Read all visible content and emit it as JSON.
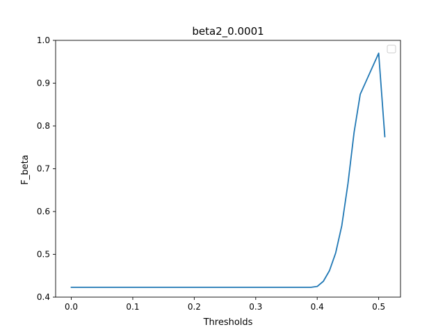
{
  "chart_data": {
    "type": "line",
    "title": "beta2_0.0001",
    "xlabel": "Thresholds",
    "ylabel": "F_beta",
    "xlim": [
      -0.0255,
      0.5355
    ],
    "ylim": [
      0.4,
      1.0
    ],
    "xticks": [
      0.0,
      0.1,
      0.2,
      0.3,
      0.4,
      0.5
    ],
    "xtick_labels": [
      "0.0",
      "0.1",
      "0.2",
      "0.3",
      "0.4",
      "0.5"
    ],
    "yticks": [
      0.4,
      0.5,
      0.6,
      0.7,
      0.8,
      0.9,
      1.0
    ],
    "ytick_labels": [
      "0.4",
      "0.5",
      "0.6",
      "0.7",
      "0.8",
      "0.9",
      "1.0"
    ],
    "grid": false,
    "legend": {
      "placement": "upper right",
      "entries": []
    },
    "series": [
      {
        "color": "#1f77b4",
        "x": [
          0.0,
          0.01,
          0.02,
          0.03,
          0.04,
          0.05,
          0.06,
          0.07,
          0.08,
          0.09,
          0.1,
          0.11,
          0.12,
          0.13,
          0.14,
          0.15,
          0.16,
          0.17,
          0.18,
          0.19,
          0.2,
          0.21,
          0.22,
          0.23,
          0.24,
          0.25,
          0.26,
          0.27,
          0.28,
          0.29,
          0.3,
          0.31,
          0.32,
          0.33,
          0.34,
          0.35,
          0.36,
          0.37,
          0.38,
          0.39,
          0.4,
          0.41,
          0.42,
          0.43,
          0.44,
          0.45,
          0.46,
          0.47,
          0.48,
          0.49,
          0.5,
          0.51
        ],
        "values": [
          0.423,
          0.423,
          0.423,
          0.423,
          0.423,
          0.423,
          0.423,
          0.423,
          0.423,
          0.423,
          0.423,
          0.423,
          0.423,
          0.423,
          0.423,
          0.423,
          0.423,
          0.423,
          0.423,
          0.423,
          0.423,
          0.423,
          0.423,
          0.423,
          0.423,
          0.423,
          0.423,
          0.423,
          0.423,
          0.423,
          0.423,
          0.423,
          0.423,
          0.423,
          0.423,
          0.423,
          0.423,
          0.423,
          0.423,
          0.423,
          0.425,
          0.437,
          0.462,
          0.503,
          0.567,
          0.665,
          0.785,
          0.874,
          0.906,
          0.938,
          0.97,
          0.775
        ]
      }
    ]
  }
}
